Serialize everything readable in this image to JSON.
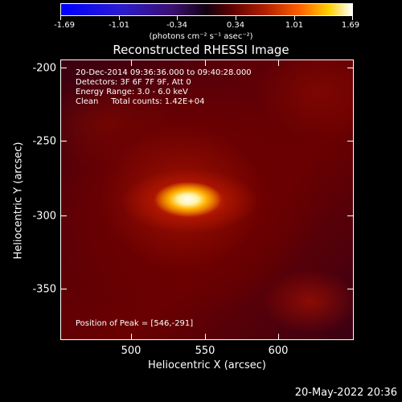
{
  "colorbar": {
    "tick_labels": [
      "-1.69",
      "-1.01",
      "-0.34",
      "0.34",
      "1.01",
      "1.69"
    ],
    "units": "(photons cm⁻² s⁻¹ asec⁻²)"
  },
  "title": "Reconstructed RHESSI Image",
  "info": {
    "time_range": "20-Dec-2014 09:36:36.000 to 09:40:28.000",
    "detectors": "Detectors: 3F 6F 7F 9F, Att 0",
    "energy_range": "Energy Range: 3.0 - 6.0 keV",
    "clean_counts": "Clean     Total counts: 1.42E+04",
    "peak": "Position of Peak = [546,-291]"
  },
  "axes": {
    "xlabel": "Heliocentric X (arcsec)",
    "ylabel": "Heliocentric Y (arcsec)",
    "x_ticks": [
      "500",
      "550",
      "600"
    ],
    "y_ticks": [
      "-200",
      "-250",
      "-300",
      "-350"
    ]
  },
  "footer_date": "20-May-2022 20:36"
}
